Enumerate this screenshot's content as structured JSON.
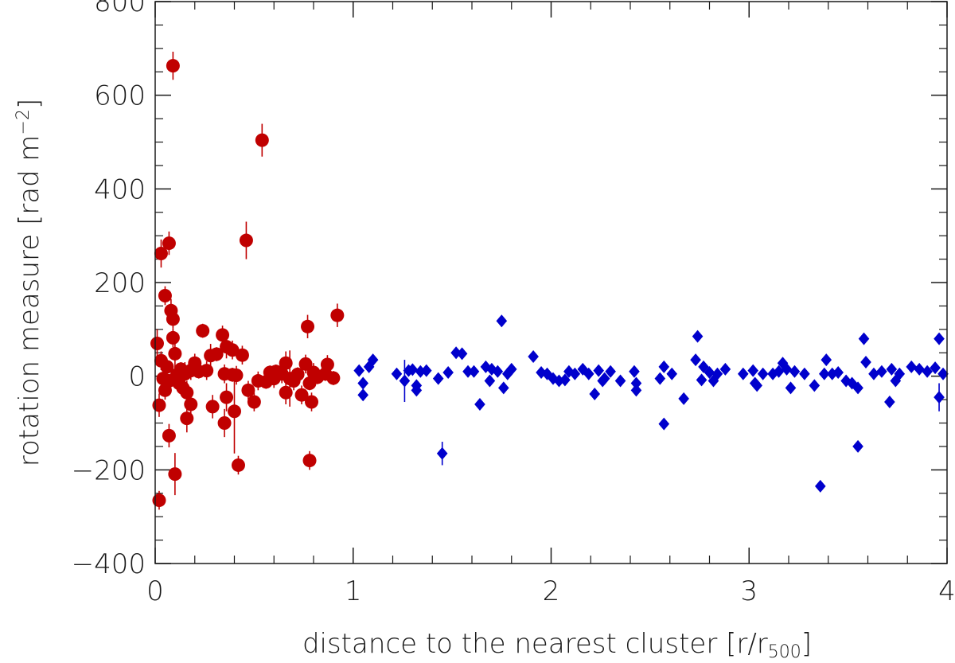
{
  "chart_data": {
    "type": "scatter",
    "xlabel": "distance to the nearest cluster [r/r",
    "xlabel_sub": "500",
    "xlabel_end": "]",
    "ylabel": "rotation measure [rad m",
    "ylabel_sup": "−2",
    "ylabel_end": "]",
    "xlim": [
      0,
      4
    ],
    "ylim": [
      -400,
      800
    ],
    "xticks": [
      0,
      1,
      2,
      3,
      4
    ],
    "xtick_labels": [
      "0",
      "1",
      "2",
      "3",
      "4"
    ],
    "yticks": [
      -400,
      -200,
      0,
      200,
      400,
      600,
      800
    ],
    "ytick_labels": [
      "−400",
      "−200",
      "0",
      "200",
      "400",
      "600",
      "800"
    ],
    "grid": false,
    "series": [
      {
        "marker": "circle",
        "color": "#c00000",
        "points": [
          {
            "x": 0.09,
            "y": 663,
            "err": 30
          },
          {
            "x": 0.54,
            "y": 504,
            "err": 35
          },
          {
            "x": 0.46,
            "y": 290,
            "err": 40
          },
          {
            "x": 0.07,
            "y": 284,
            "err": 25
          },
          {
            "x": 0.03,
            "y": 262,
            "err": 30
          },
          {
            "x": 0.05,
            "y": 172,
            "err": 20
          },
          {
            "x": 0.08,
            "y": 140,
            "err": 25
          },
          {
            "x": 0.09,
            "y": 122,
            "err": 20
          },
          {
            "x": 0.92,
            "y": 130,
            "err": 25
          },
          {
            "x": 0.77,
            "y": 106,
            "err": 25
          },
          {
            "x": 0.24,
            "y": 97,
            "err": 15
          },
          {
            "x": 0.09,
            "y": 82,
            "err": 20
          },
          {
            "x": 0.34,
            "y": 88,
            "err": 20
          },
          {
            "x": 0.01,
            "y": 70,
            "err": 30
          },
          {
            "x": 0.36,
            "y": 63,
            "err": 25
          },
          {
            "x": 0.39,
            "y": 56,
            "err": 20
          },
          {
            "x": 0.1,
            "y": 48,
            "err": 30
          },
          {
            "x": 0.28,
            "y": 44,
            "err": 25
          },
          {
            "x": 0.31,
            "y": 47,
            "err": 15
          },
          {
            "x": 0.44,
            "y": 45,
            "err": 20
          },
          {
            "x": 0.03,
            "y": 33,
            "err": 20
          },
          {
            "x": 0.2,
            "y": 28,
            "err": 20
          },
          {
            "x": 0.66,
            "y": 28,
            "err": 25
          },
          {
            "x": 0.76,
            "y": 26,
            "err": 20
          },
          {
            "x": 0.87,
            "y": 25,
            "err": 20
          },
          {
            "x": 0.06,
            "y": 20,
            "err": 15
          },
          {
            "x": 0.13,
            "y": 15,
            "err": 15
          },
          {
            "x": 0.18,
            "y": 12,
            "err": 20
          },
          {
            "x": 0.22,
            "y": 10,
            "err": 15
          },
          {
            "x": 0.26,
            "y": 12,
            "err": 20
          },
          {
            "x": 0.35,
            "y": 5,
            "err": 20
          },
          {
            "x": 0.39,
            "y": 3,
            "err": 15
          },
          {
            "x": 0.41,
            "y": 2,
            "err": 20
          },
          {
            "x": 0.58,
            "y": 8,
            "err": 15
          },
          {
            "x": 0.61,
            "y": 10,
            "err": 15
          },
          {
            "x": 0.64,
            "y": 5,
            "err": 20
          },
          {
            "x": 0.68,
            "y": -5,
            "err": 60
          },
          {
            "x": 0.72,
            "y": 4,
            "err": 15
          },
          {
            "x": 0.8,
            "y": 8,
            "err": 20
          },
          {
            "x": 0.86,
            "y": 5,
            "err": 15
          },
          {
            "x": 0.9,
            "y": -4,
            "err": 15
          },
          {
            "x": 0.11,
            "y": 3,
            "err": 20
          },
          {
            "x": 0.15,
            "y": 5,
            "err": 25
          },
          {
            "x": 0.04,
            "y": -5,
            "err": 20
          },
          {
            "x": 0.07,
            "y": -10,
            "err": 15
          },
          {
            "x": 0.12,
            "y": -15,
            "err": 20
          },
          {
            "x": 0.14,
            "y": -25,
            "err": 20
          },
          {
            "x": 0.16,
            "y": -35,
            "err": 25
          },
          {
            "x": 0.05,
            "y": -30,
            "err": 20
          },
          {
            "x": 0.52,
            "y": -10,
            "err": 20
          },
          {
            "x": 0.56,
            "y": -12,
            "err": 15
          },
          {
            "x": 0.6,
            "y": -5,
            "err": 20
          },
          {
            "x": 0.7,
            "y": -10,
            "err": 20
          },
          {
            "x": 0.78,
            "y": -15,
            "err": 15
          },
          {
            "x": 0.82,
            "y": -2,
            "err": 15
          },
          {
            "x": 0.47,
            "y": -30,
            "err": 20
          },
          {
            "x": 0.5,
            "y": -55,
            "err": 20
          },
          {
            "x": 0.66,
            "y": -35,
            "err": 25
          },
          {
            "x": 0.74,
            "y": -40,
            "err": 20
          },
          {
            "x": 0.18,
            "y": -60,
            "err": 30
          },
          {
            "x": 0.29,
            "y": -65,
            "err": 25
          },
          {
            "x": 0.02,
            "y": -62,
            "err": 25
          },
          {
            "x": 0.36,
            "y": -45,
            "err": 30
          },
          {
            "x": 0.4,
            "y": -75,
            "err": 90
          },
          {
            "x": 0.79,
            "y": -55,
            "err": 20
          },
          {
            "x": 0.16,
            "y": -90,
            "err": 30
          },
          {
            "x": 0.35,
            "y": -100,
            "err": 30
          },
          {
            "x": 0.07,
            "y": -127,
            "err": 25
          },
          {
            "x": 0.42,
            "y": -190,
            "err": 20
          },
          {
            "x": 0.78,
            "y": -180,
            "err": 20
          },
          {
            "x": 0.1,
            "y": -209,
            "err": 45
          },
          {
            "x": 0.02,
            "y": -265,
            "err": 20
          }
        ]
      },
      {
        "marker": "diamond",
        "color": "#0000cc",
        "points": [
          {
            "x": 1.75,
            "y": 118,
            "err": 8
          },
          {
            "x": 2.74,
            "y": 85,
            "err": 8
          },
          {
            "x": 3.58,
            "y": 80,
            "err": 8
          },
          {
            "x": 3.96,
            "y": 80,
            "err": 8
          },
          {
            "x": 1.52,
            "y": 50,
            "err": 8
          },
          {
            "x": 1.55,
            "y": 48,
            "err": 8
          },
          {
            "x": 1.91,
            "y": 42,
            "err": 8
          },
          {
            "x": 1.1,
            "y": 35,
            "err": 8
          },
          {
            "x": 2.73,
            "y": 35,
            "err": 8
          },
          {
            "x": 3.39,
            "y": 35,
            "err": 8
          },
          {
            "x": 3.59,
            "y": 30,
            "err": 8
          },
          {
            "x": 3.17,
            "y": 28,
            "err": 8
          },
          {
            "x": 1.03,
            "y": 12,
            "err": 8
          },
          {
            "x": 1.08,
            "y": 20,
            "err": 8
          },
          {
            "x": 1.22,
            "y": 5,
            "err": 8
          },
          {
            "x": 1.26,
            "y": -10,
            "err": 45
          },
          {
            "x": 1.28,
            "y": 12,
            "err": 8
          },
          {
            "x": 1.3,
            "y": 14,
            "err": 8
          },
          {
            "x": 1.34,
            "y": 10,
            "err": 8
          },
          {
            "x": 1.37,
            "y": 12,
            "err": 8
          },
          {
            "x": 1.43,
            "y": -5,
            "err": 8
          },
          {
            "x": 1.48,
            "y": 8,
            "err": 8
          },
          {
            "x": 1.58,
            "y": 10,
            "err": 8
          },
          {
            "x": 1.61,
            "y": 10,
            "err": 8
          },
          {
            "x": 1.67,
            "y": 20,
            "err": 8
          },
          {
            "x": 1.7,
            "y": 15,
            "err": 8
          },
          {
            "x": 1.73,
            "y": 10,
            "err": 8
          },
          {
            "x": 1.78,
            "y": 5,
            "err": 8
          },
          {
            "x": 1.8,
            "y": 15,
            "err": 8
          },
          {
            "x": 1.95,
            "y": 8,
            "err": 8
          },
          {
            "x": 1.98,
            "y": 5,
            "err": 8
          },
          {
            "x": 2.04,
            "y": -10,
            "err": 8
          },
          {
            "x": 2.09,
            "y": 10,
            "err": 8
          },
          {
            "x": 2.12,
            "y": 5,
            "err": 8
          },
          {
            "x": 2.16,
            "y": 15,
            "err": 8
          },
          {
            "x": 2.19,
            "y": 5,
            "err": 8
          },
          {
            "x": 2.24,
            "y": 12,
            "err": 8
          },
          {
            "x": 2.27,
            "y": -5,
            "err": 8
          },
          {
            "x": 2.3,
            "y": 10,
            "err": 8
          },
          {
            "x": 2.35,
            "y": -10,
            "err": 8
          },
          {
            "x": 2.42,
            "y": 10,
            "err": 8
          },
          {
            "x": 2.57,
            "y": 20,
            "err": 8
          },
          {
            "x": 2.61,
            "y": 5,
            "err": 8
          },
          {
            "x": 2.77,
            "y": 20,
            "err": 8
          },
          {
            "x": 2.8,
            "y": 8,
            "err": 8
          },
          {
            "x": 2.84,
            "y": 5,
            "err": 8
          },
          {
            "x": 2.88,
            "y": 15,
            "err": 8
          },
          {
            "x": 2.97,
            "y": 5,
            "err": 8
          },
          {
            "x": 3.02,
            "y": 12,
            "err": 8
          },
          {
            "x": 3.07,
            "y": 5,
            "err": 8
          },
          {
            "x": 3.12,
            "y": 5,
            "err": 8
          },
          {
            "x": 3.15,
            "y": 10,
            "err": 8
          },
          {
            "x": 3.19,
            "y": 15,
            "err": 8
          },
          {
            "x": 3.23,
            "y": 10,
            "err": 8
          },
          {
            "x": 3.28,
            "y": 5,
            "err": 8
          },
          {
            "x": 3.38,
            "y": 5,
            "err": 8
          },
          {
            "x": 3.42,
            "y": 5,
            "err": 8
          },
          {
            "x": 3.45,
            "y": 8,
            "err": 8
          },
          {
            "x": 3.49,
            "y": -10,
            "err": 8
          },
          {
            "x": 3.52,
            "y": -15,
            "err": 8
          },
          {
            "x": 3.63,
            "y": 5,
            "err": 8
          },
          {
            "x": 3.67,
            "y": 10,
            "err": 8
          },
          {
            "x": 3.72,
            "y": 15,
            "err": 8
          },
          {
            "x": 3.76,
            "y": 5,
            "err": 8
          },
          {
            "x": 3.82,
            "y": 20,
            "err": 8
          },
          {
            "x": 3.86,
            "y": 15,
            "err": 8
          },
          {
            "x": 3.9,
            "y": 10,
            "err": 8
          },
          {
            "x": 3.94,
            "y": 18,
            "err": 8
          },
          {
            "x": 3.98,
            "y": 5,
            "err": 8
          },
          {
            "x": 1.05,
            "y": -15,
            "err": 8
          },
          {
            "x": 1.32,
            "y": -20,
            "err": 8
          },
          {
            "x": 1.69,
            "y": -10,
            "err": 8
          },
          {
            "x": 1.76,
            "y": -25,
            "err": 8
          },
          {
            "x": 2.01,
            "y": -5,
            "err": 8
          },
          {
            "x": 2.07,
            "y": -8,
            "err": 8
          },
          {
            "x": 2.26,
            "y": -10,
            "err": 8
          },
          {
            "x": 2.43,
            "y": -15,
            "err": 8
          },
          {
            "x": 2.55,
            "y": -5,
            "err": 8
          },
          {
            "x": 2.76,
            "y": -8,
            "err": 8
          },
          {
            "x": 2.82,
            "y": -10,
            "err": 8
          },
          {
            "x": 3.03,
            "y": -15,
            "err": 8
          },
          {
            "x": 3.21,
            "y": -25,
            "err": 8
          },
          {
            "x": 3.33,
            "y": -20,
            "err": 8
          },
          {
            "x": 3.55,
            "y": -25,
            "err": 8
          },
          {
            "x": 3.74,
            "y": -10,
            "err": 8
          },
          {
            "x": 1.05,
            "y": -40,
            "err": 8
          },
          {
            "x": 1.32,
            "y": -30,
            "err": 8
          },
          {
            "x": 2.22,
            "y": -38,
            "err": 8
          },
          {
            "x": 2.43,
            "y": -30,
            "err": 8
          },
          {
            "x": 2.67,
            "y": -48,
            "err": 8
          },
          {
            "x": 3.04,
            "y": -20,
            "err": 8
          },
          {
            "x": 3.71,
            "y": -55,
            "err": 8
          },
          {
            "x": 3.96,
            "y": -45,
            "err": 30
          },
          {
            "x": 1.64,
            "y": -60,
            "err": 8
          },
          {
            "x": 2.57,
            "y": -102,
            "err": 8
          },
          {
            "x": 3.55,
            "y": -150,
            "err": 8
          },
          {
            "x": 1.45,
            "y": -165,
            "err": 25
          },
          {
            "x": 3.36,
            "y": -235,
            "err": 8
          }
        ]
      }
    ]
  }
}
